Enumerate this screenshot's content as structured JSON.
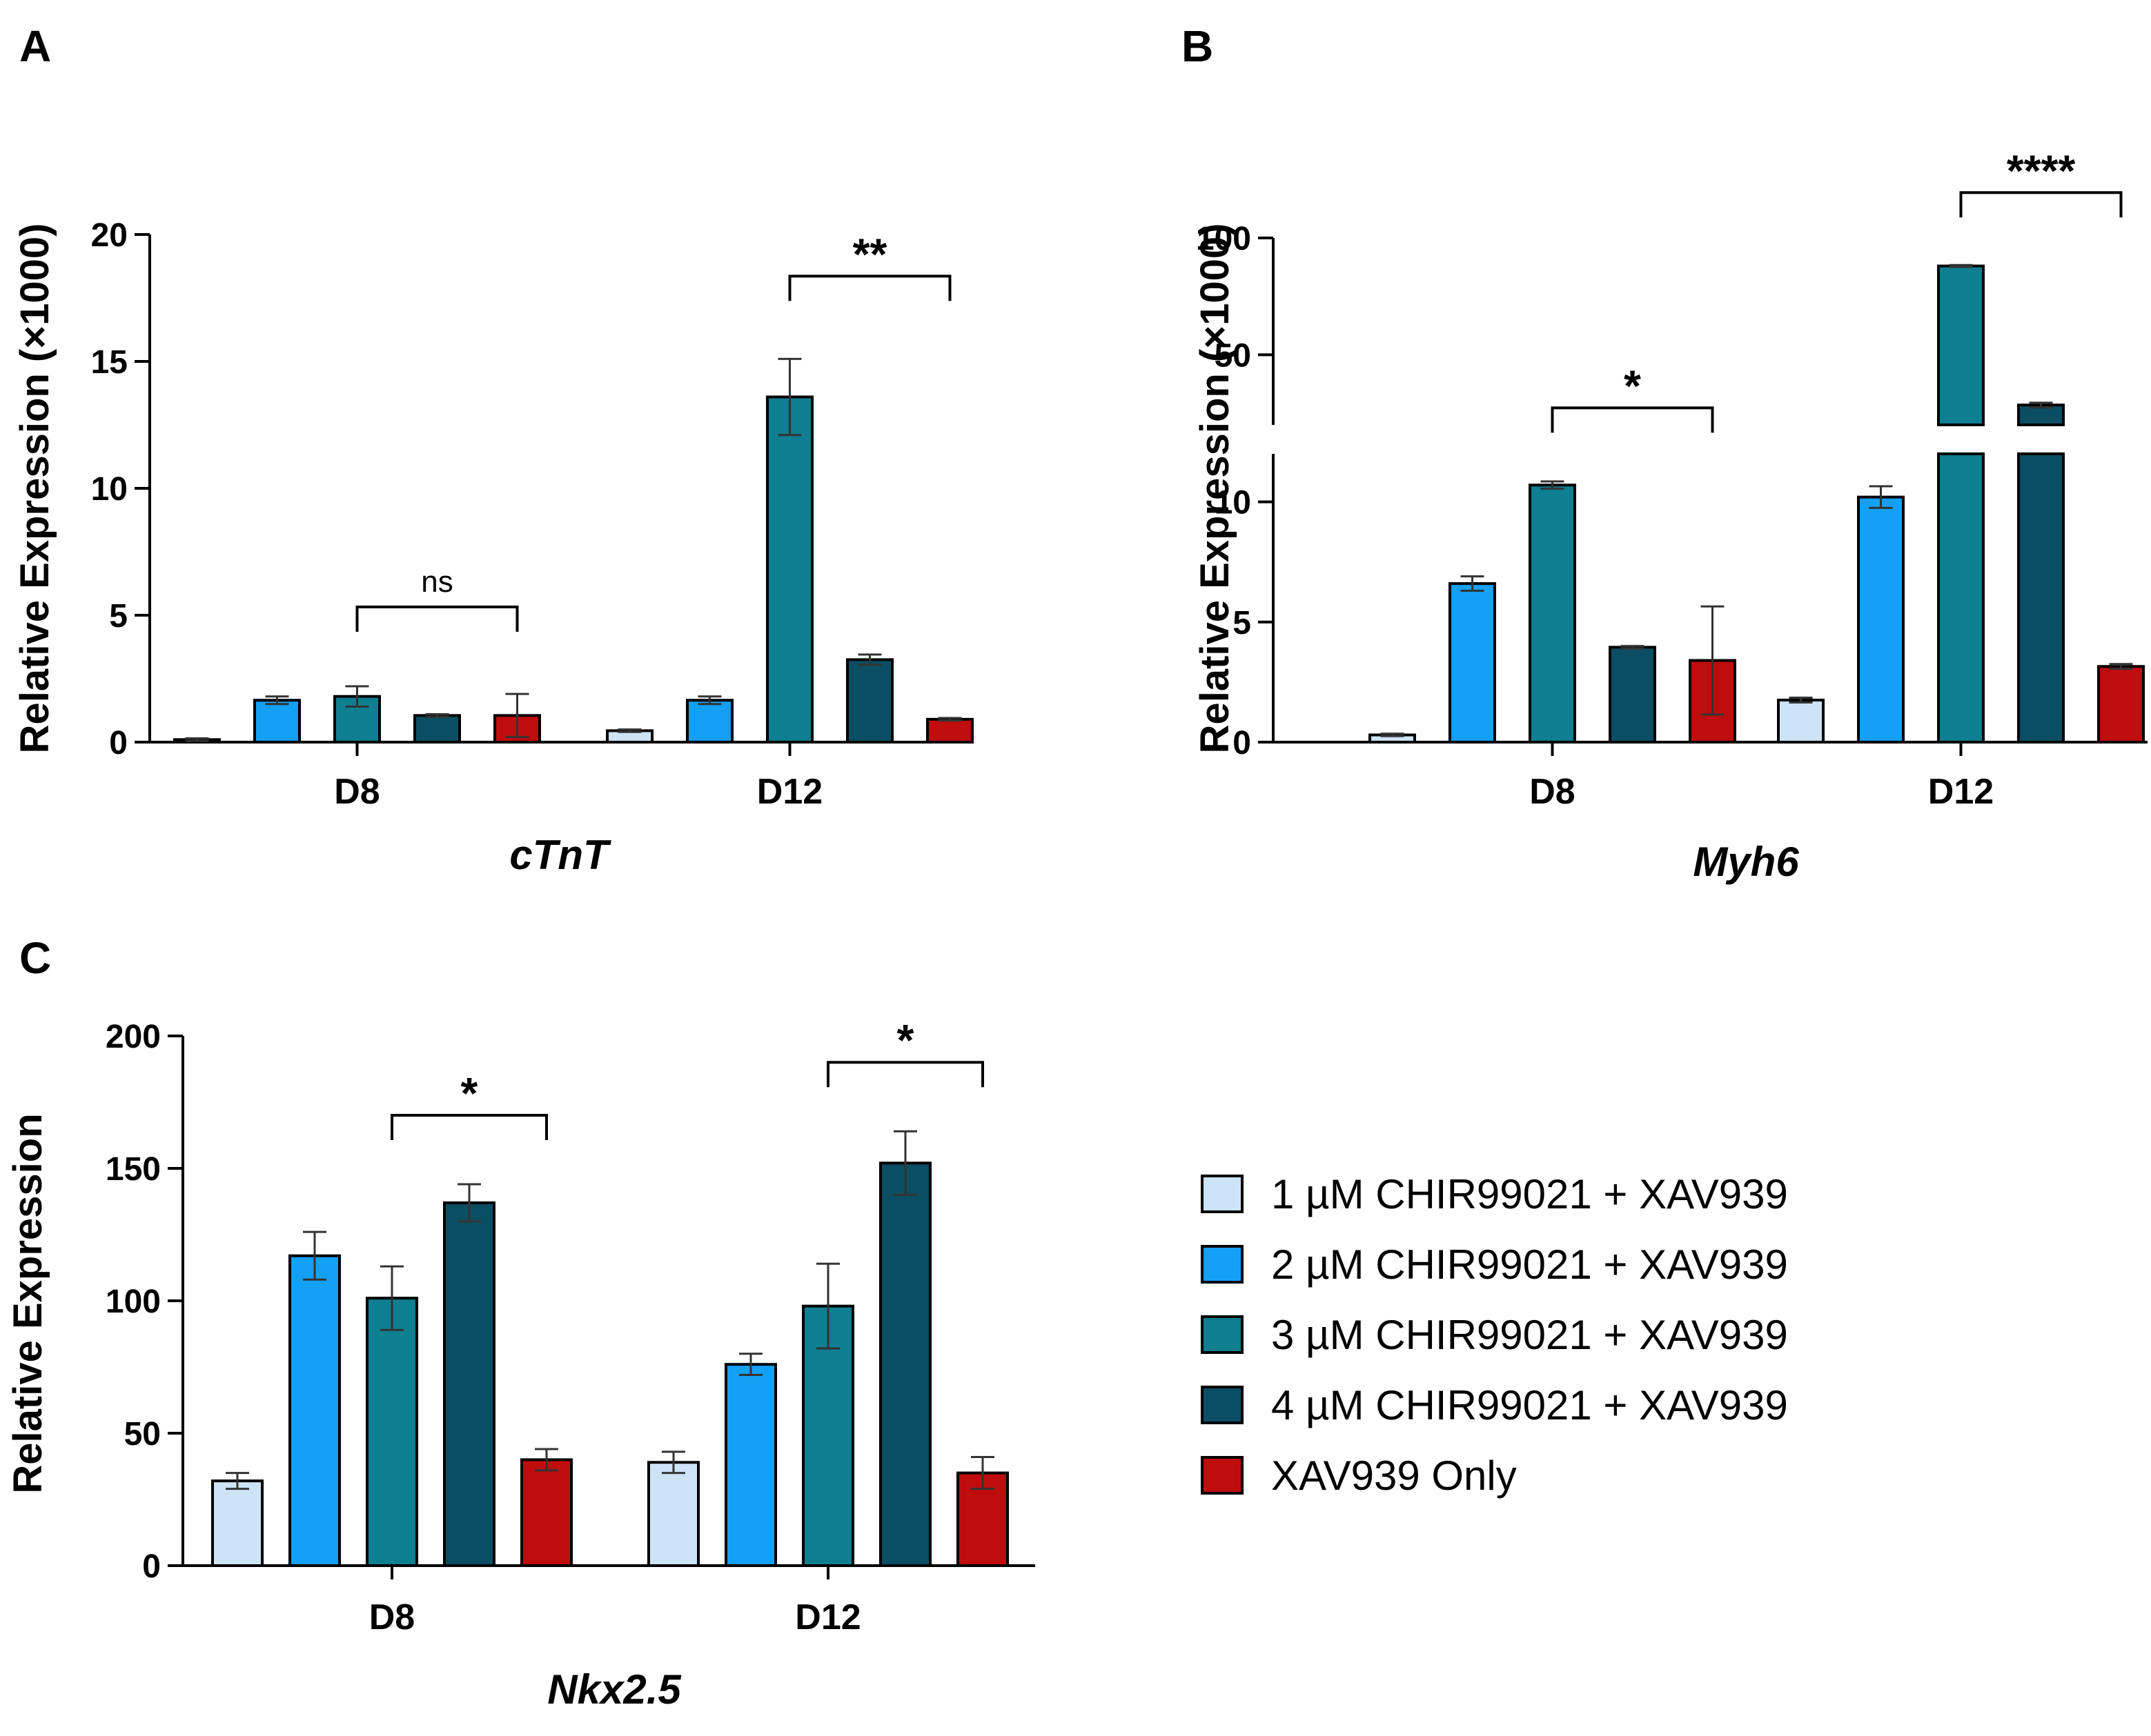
{
  "panels": {
    "a": "A",
    "b": "B",
    "c": "C"
  },
  "series_colors": [
    "#cde4f7",
    "#14a0f5",
    "#0e7e91",
    "#0b4e63",
    "#bf0d0d"
  ],
  "chart_data": [
    {
      "id": "cTnT",
      "type": "bar",
      "title": "cTnT",
      "xlabel": "cTnT",
      "ylabel": "Relative Expression (×1000)",
      "ylim": [
        0,
        20
      ],
      "yticks": [
        0,
        5,
        10,
        15,
        20
      ],
      "categories": [
        "D8",
        "D12"
      ],
      "series": [
        {
          "name": "1 µM CHIR99021 + XAV939",
          "values": [
            0.1,
            0.45
          ],
          "errors": [
            0.05,
            0.05
          ]
        },
        {
          "name": "2 µM CHIR99021 + XAV939",
          "values": [
            1.65,
            1.65
          ],
          "errors": [
            0.15,
            0.15
          ]
        },
        {
          "name": "3 µM CHIR99021 + XAV939",
          "values": [
            1.8,
            13.6
          ],
          "errors": [
            0.4,
            1.5
          ]
        },
        {
          "name": "4 µM CHIR99021 + XAV939",
          "values": [
            1.05,
            3.25
          ],
          "errors": [
            0.05,
            0.2
          ]
        },
        {
          "name": "XAV939 Only",
          "values": [
            1.05,
            0.9
          ],
          "errors": [
            0.85,
            0.05
          ]
        }
      ],
      "significance": [
        {
          "category": "D8",
          "from": 2,
          "to": 4,
          "label": "ns"
        },
        {
          "category": "D12",
          "from": 2,
          "to": 4,
          "label": "**"
        }
      ]
    },
    {
      "id": "Myh6",
      "type": "bar",
      "title": "Myh6",
      "xlabel": "Myh6",
      "ylabel": "Relative Expression (×1000)",
      "ylim": [
        0,
        100
      ],
      "axis_break": [
        12,
        20
      ],
      "yticks": [
        0,
        5,
        10,
        50,
        100
      ],
      "categories": [
        "D8",
        "D12"
      ],
      "series": [
        {
          "name": "1 µM CHIR99021 + XAV939",
          "values": [
            0.3,
            1.75
          ],
          "errors": [
            0.05,
            0.1
          ]
        },
        {
          "name": "2 µM CHIR99021 + XAV939",
          "values": [
            6.6,
            10.2
          ],
          "errors": [
            0.3,
            0.45
          ]
        },
        {
          "name": "3 µM CHIR99021 + XAV939",
          "values": [
            10.7,
            88
          ],
          "errors": [
            0.15,
            0.4
          ]
        },
        {
          "name": "4 µM CHIR99021 + XAV939",
          "values": [
            3.95,
            28.5
          ],
          "errors": [
            0.05,
            1.0
          ]
        },
        {
          "name": "XAV939 Only",
          "values": [
            3.4,
            3.15
          ],
          "errors": [
            2.25,
            0.1
          ]
        }
      ],
      "significance": [
        {
          "category": "D8",
          "from": 2,
          "to": 4,
          "label": "*"
        },
        {
          "category": "D12",
          "from": 2,
          "to": 4,
          "label": "****"
        }
      ]
    },
    {
      "id": "Nkx2.5",
      "type": "bar",
      "title": "Nkx2.5",
      "xlabel": "Nkx2.5",
      "ylabel": "Relative Expression",
      "ylim": [
        0,
        200
      ],
      "yticks": [
        0,
        50,
        100,
        150,
        200
      ],
      "categories": [
        "D8",
        "D12"
      ],
      "series": [
        {
          "name": "1 µM CHIR99021 + XAV939",
          "values": [
            32,
            39
          ],
          "errors": [
            3,
            4
          ]
        },
        {
          "name": "2 µM CHIR99021 + XAV939",
          "values": [
            117,
            76
          ],
          "errors": [
            9,
            4
          ]
        },
        {
          "name": "3 µM CHIR99021 + XAV939",
          "values": [
            101,
            98
          ],
          "errors": [
            12,
            16
          ]
        },
        {
          "name": "4 µM CHIR99021 + XAV939",
          "values": [
            137,
            152
          ],
          "errors": [
            7,
            12
          ]
        },
        {
          "name": "XAV939 Only",
          "values": [
            40,
            35
          ],
          "errors": [
            4,
            6
          ]
        }
      ],
      "significance": [
        {
          "category": "D8",
          "from": 2,
          "to": 4,
          "label": "*"
        },
        {
          "category": "D12",
          "from": 2,
          "to": 4,
          "label": "*"
        }
      ]
    }
  ],
  "legend": {
    "items": [
      "1 µM CHIR99021 + XAV939",
      "2 µM CHIR99021 + XAV939",
      "3 µM CHIR99021 + XAV939",
      "4 µM CHIR99021 + XAV939",
      "XAV939 Only"
    ]
  }
}
